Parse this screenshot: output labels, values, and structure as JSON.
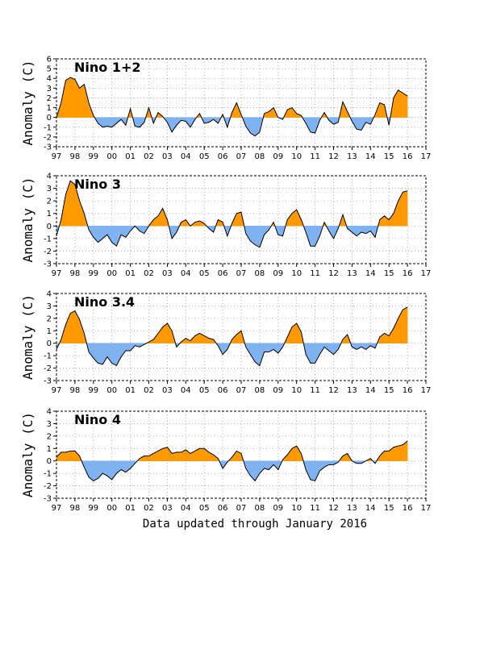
{
  "footer": "Data updated through January 2016",
  "colors": {
    "positive": "#FF9900",
    "negative": "#7FB2F0",
    "outline": "#000000",
    "grid": "#999999"
  },
  "chart_data": [
    {
      "type": "area",
      "title": "Nino 1+2",
      "ylabel": "Anomaly (C)",
      "xlim": [
        97,
        117
      ],
      "ylim": [
        -3,
        6
      ],
      "yticks": [
        -3,
        -2,
        -1,
        0,
        1,
        2,
        3,
        4,
        5,
        6
      ],
      "xtick_labels": [
        "97",
        "98",
        "99",
        "00",
        "01",
        "02",
        "03",
        "04",
        "05",
        "06",
        "07",
        "08",
        "09",
        "10",
        "11",
        "12",
        "13",
        "14",
        "15",
        "16",
        "17"
      ],
      "grid": true,
      "x": [
        97.0,
        97.25,
        97.5,
        97.75,
        98.0,
        98.25,
        98.5,
        98.75,
        99.0,
        99.25,
        99.5,
        99.75,
        100.0,
        100.25,
        100.5,
        100.75,
        101.0,
        101.25,
        101.5,
        101.75,
        102.0,
        102.25,
        102.5,
        102.75,
        103.0,
        103.25,
        103.5,
        103.75,
        104.0,
        104.25,
        104.5,
        104.75,
        105.0,
        105.25,
        105.5,
        105.75,
        106.0,
        106.25,
        106.5,
        106.75,
        107.0,
        107.25,
        107.5,
        107.75,
        108.0,
        108.25,
        108.5,
        108.75,
        109.0,
        109.25,
        109.5,
        109.75,
        110.0,
        110.25,
        110.5,
        110.75,
        111.0,
        111.25,
        111.5,
        111.75,
        112.0,
        112.25,
        112.5,
        112.75,
        113.0,
        113.25,
        113.5,
        113.75,
        114.0,
        114.25,
        114.5,
        114.75,
        115.0,
        115.25,
        115.5,
        115.75,
        116.0
      ],
      "values": [
        0.0,
        1.5,
        3.8,
        4.1,
        3.9,
        3.0,
        3.4,
        1.5,
        0.2,
        -0.6,
        -1.0,
        -0.9,
        -1.0,
        -0.6,
        -0.2,
        -0.8,
        0.9,
        -0.9,
        -1.0,
        -0.5,
        1.0,
        -0.6,
        0.5,
        0.1,
        -0.5,
        -1.5,
        -0.8,
        -0.3,
        -0.4,
        -1.0,
        -0.2,
        0.4,
        -0.6,
        -0.5,
        -0.2,
        -0.6,
        0.3,
        -1.0,
        0.5,
        1.5,
        0.3,
        -0.9,
        -1.6,
        -1.9,
        -1.5,
        0.4,
        0.6,
        1.0,
        0.0,
        -0.2,
        0.8,
        1.0,
        0.4,
        0.2,
        -0.6,
        -1.5,
        -1.6,
        -0.3,
        0.5,
        -0.3,
        -0.7,
        -0.5,
        1.6,
        0.6,
        -0.4,
        -1.2,
        -1.3,
        -0.5,
        -0.7,
        0.3,
        1.5,
        1.3,
        -0.8,
        2.0,
        2.8,
        2.5,
        2.2
      ]
    },
    {
      "type": "area",
      "title": "Nino 3",
      "ylabel": "Anomaly (C)",
      "xlim": [
        97,
        117
      ],
      "ylim": [
        -3,
        4
      ],
      "yticks": [
        -3,
        -2,
        -1,
        0,
        1,
        2,
        3,
        4
      ],
      "xtick_labels": [
        "97",
        "98",
        "99",
        "00",
        "01",
        "02",
        "03",
        "04",
        "05",
        "06",
        "07",
        "08",
        "09",
        "10",
        "11",
        "12",
        "13",
        "14",
        "15",
        "16",
        "17"
      ],
      "grid": true,
      "x": [
        97.0,
        97.25,
        97.5,
        97.75,
        98.0,
        98.25,
        98.5,
        98.75,
        99.0,
        99.25,
        99.5,
        99.75,
        100.0,
        100.25,
        100.5,
        100.75,
        101.0,
        101.25,
        101.5,
        101.75,
        102.0,
        102.25,
        102.5,
        102.75,
        103.0,
        103.25,
        103.5,
        103.75,
        104.0,
        104.25,
        104.5,
        104.75,
        105.0,
        105.25,
        105.5,
        105.75,
        106.0,
        106.25,
        106.5,
        106.75,
        107.0,
        107.25,
        107.5,
        107.75,
        108.0,
        108.25,
        108.5,
        108.75,
        109.0,
        109.25,
        109.5,
        109.75,
        110.0,
        110.25,
        110.5,
        110.75,
        111.0,
        111.25,
        111.5,
        111.75,
        112.0,
        112.25,
        112.5,
        112.75,
        113.0,
        113.25,
        113.5,
        113.75,
        114.0,
        114.25,
        114.5,
        114.75,
        115.0,
        115.25,
        115.5,
        115.75,
        116.0
      ],
      "values": [
        -0.8,
        0.5,
        2.5,
        3.6,
        3.3,
        2.0,
        1.0,
        -0.3,
        -0.9,
        -1.3,
        -1.0,
        -0.7,
        -1.3,
        -1.6,
        -0.7,
        -0.9,
        -0.4,
        0.0,
        -0.4,
        -0.6,
        0.0,
        0.5,
        0.8,
        1.4,
        0.5,
        -1.0,
        -0.5,
        0.3,
        0.5,
        0.0,
        0.3,
        0.4,
        0.2,
        -0.2,
        -0.5,
        0.5,
        0.3,
        -0.8,
        0.2,
        1.0,
        1.1,
        -0.6,
        -1.2,
        -1.5,
        -1.7,
        -0.7,
        -0.3,
        0.3,
        -0.7,
        -0.8,
        0.5,
        1.0,
        1.3,
        0.5,
        -0.5,
        -1.6,
        -1.6,
        -0.8,
        0.3,
        -0.4,
        -1.0,
        -0.2,
        0.9,
        -0.2,
        -0.5,
        -0.8,
        -0.5,
        -0.6,
        -0.4,
        -0.9,
        0.5,
        0.8,
        0.5,
        1.0,
        2.0,
        2.7,
        2.8
      ]
    },
    {
      "type": "area",
      "title": "Nino 3.4",
      "ylabel": "Anomaly (C)",
      "xlim": [
        97,
        117
      ],
      "ylim": [
        -3,
        4
      ],
      "yticks": [
        -3,
        -2,
        -1,
        0,
        1,
        2,
        3,
        4
      ],
      "xtick_labels": [
        "97",
        "98",
        "99",
        "00",
        "01",
        "02",
        "03",
        "04",
        "05",
        "06",
        "07",
        "08",
        "09",
        "10",
        "11",
        "12",
        "13",
        "14",
        "15",
        "16",
        "17"
      ],
      "grid": true,
      "x": [
        97.0,
        97.25,
        97.5,
        97.75,
        98.0,
        98.25,
        98.5,
        98.75,
        99.0,
        99.25,
        99.5,
        99.75,
        100.0,
        100.25,
        100.5,
        100.75,
        101.0,
        101.25,
        101.5,
        101.75,
        102.0,
        102.25,
        102.5,
        102.75,
        103.0,
        103.25,
        103.5,
        103.75,
        104.0,
        104.25,
        104.5,
        104.75,
        105.0,
        105.25,
        105.5,
        105.75,
        106.0,
        106.25,
        106.5,
        106.75,
        107.0,
        107.25,
        107.5,
        107.75,
        108.0,
        108.25,
        108.5,
        108.75,
        109.0,
        109.25,
        109.5,
        109.75,
        110.0,
        110.25,
        110.5,
        110.75,
        111.0,
        111.25,
        111.5,
        111.75,
        112.0,
        112.25,
        112.5,
        112.75,
        113.0,
        113.25,
        113.5,
        113.75,
        114.0,
        114.25,
        114.5,
        114.75,
        115.0,
        115.25,
        115.5,
        115.75,
        116.0
      ],
      "values": [
        -0.5,
        0.3,
        1.5,
        2.4,
        2.6,
        1.9,
        0.8,
        -0.7,
        -1.2,
        -1.6,
        -1.7,
        -1.1,
        -1.6,
        -1.8,
        -1.1,
        -0.6,
        -0.6,
        -0.2,
        -0.3,
        -0.1,
        0.1,
        0.3,
        0.8,
        1.3,
        1.6,
        1.0,
        -0.3,
        0.1,
        0.4,
        0.2,
        0.6,
        0.8,
        0.6,
        0.4,
        0.3,
        -0.2,
        -0.9,
        -0.5,
        0.3,
        0.7,
        1.0,
        -0.3,
        -0.9,
        -1.5,
        -1.8,
        -0.7,
        -0.7,
        -0.5,
        -0.8,
        -0.3,
        0.5,
        1.3,
        1.6,
        0.9,
        -0.9,
        -1.6,
        -1.6,
        -0.9,
        -0.3,
        -0.6,
        -0.9,
        -0.5,
        0.3,
        0.7,
        -0.3,
        -0.5,
        -0.3,
        -0.5,
        -0.2,
        -0.4,
        0.5,
        0.8,
        0.6,
        1.2,
        2.0,
        2.7,
        2.9
      ]
    },
    {
      "type": "area",
      "title": "Nino 4",
      "ylabel": "Anomaly (C)",
      "xlim": [
        97,
        117
      ],
      "ylim": [
        -3,
        4
      ],
      "yticks": [
        -3,
        -2,
        -1,
        0,
        1,
        2,
        3,
        4
      ],
      "xtick_labels": [
        "97",
        "98",
        "99",
        "00",
        "01",
        "02",
        "03",
        "04",
        "05",
        "06",
        "07",
        "08",
        "09",
        "10",
        "11",
        "12",
        "13",
        "14",
        "15",
        "16",
        "17"
      ],
      "grid": true,
      "x": [
        97.0,
        97.25,
        97.5,
        97.75,
        98.0,
        98.25,
        98.5,
        98.75,
        99.0,
        99.25,
        99.5,
        99.75,
        100.0,
        100.25,
        100.5,
        100.75,
        101.0,
        101.25,
        101.5,
        101.75,
        102.0,
        102.25,
        102.5,
        102.75,
        103.0,
        103.25,
        103.5,
        103.75,
        104.0,
        104.25,
        104.5,
        104.75,
        105.0,
        105.25,
        105.5,
        105.75,
        106.0,
        106.25,
        106.5,
        106.75,
        107.0,
        107.25,
        107.5,
        107.75,
        108.0,
        108.25,
        108.5,
        108.75,
        109.0,
        109.25,
        109.5,
        109.75,
        110.0,
        110.25,
        110.5,
        110.75,
        111.0,
        111.25,
        111.5,
        111.75,
        112.0,
        112.25,
        112.5,
        112.75,
        113.0,
        113.25,
        113.5,
        113.75,
        114.0,
        114.25,
        114.5,
        114.75,
        115.0,
        115.25,
        115.5,
        115.75,
        116.0
      ],
      "values": [
        0.3,
        0.7,
        0.7,
        0.8,
        0.8,
        0.4,
        -0.5,
        -1.3,
        -1.6,
        -1.4,
        -1.0,
        -1.2,
        -1.5,
        -1.0,
        -0.7,
        -0.9,
        -0.6,
        -0.2,
        0.2,
        0.4,
        0.4,
        0.6,
        0.8,
        1.0,
        1.1,
        0.6,
        0.7,
        0.7,
        0.9,
        0.6,
        0.8,
        1.0,
        1.0,
        0.7,
        0.5,
        0.2,
        -0.6,
        -0.1,
        0.3,
        0.8,
        0.6,
        -0.6,
        -1.2,
        -1.6,
        -1.0,
        -0.6,
        -0.7,
        -0.3,
        -0.7,
        0.1,
        0.5,
        1.0,
        1.2,
        0.6,
        -0.7,
        -1.5,
        -1.6,
        -0.8,
        -0.5,
        -0.3,
        -0.3,
        -0.1,
        0.4,
        0.6,
        0.0,
        -0.2,
        -0.2,
        0.0,
        0.2,
        -0.2,
        0.4,
        0.8,
        0.8,
        1.1,
        1.2,
        1.3,
        1.6
      ]
    }
  ]
}
